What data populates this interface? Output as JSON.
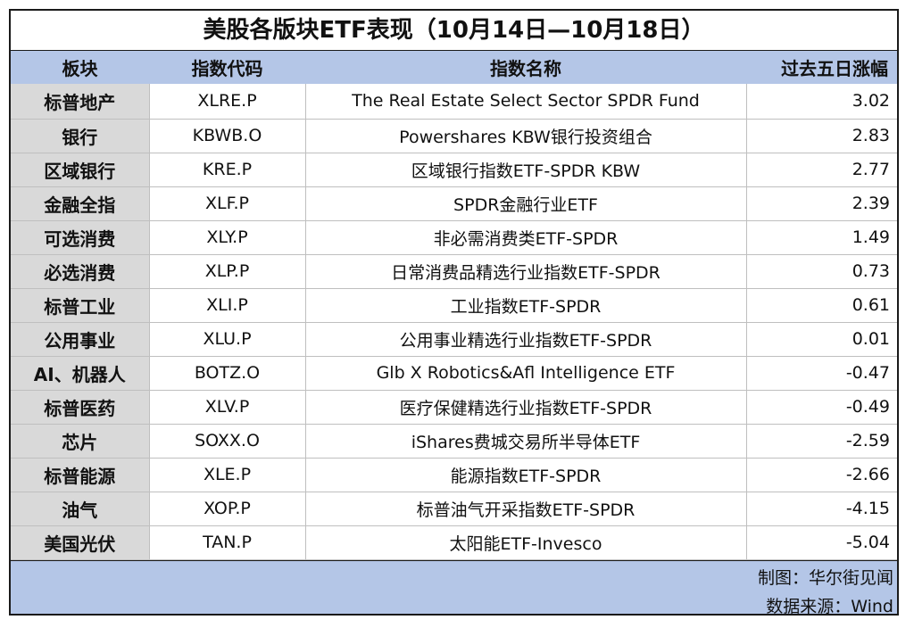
{
  "title": "美股各版块ETF表现（10月14日—10月18日）",
  "headers": {
    "sector": "板块",
    "code": "指数代码",
    "name": "指数名称",
    "change": "过去五日涨幅"
  },
  "rows": [
    {
      "sector": "标普地产",
      "code": "XLRE.P",
      "name": "The Real Estate Select Sector SPDR Fund",
      "change": "3.02"
    },
    {
      "sector": "银行",
      "code": "KBWB.O",
      "name": "Powershares KBW银行投资组合",
      "change": "2.83"
    },
    {
      "sector": "区域银行",
      "code": "KRE.P",
      "name": "区域银行指数ETF-SPDR KBW",
      "change": "2.77"
    },
    {
      "sector": "金融全指",
      "code": "XLF.P",
      "name": "SPDR金融行业ETF",
      "change": "2.39"
    },
    {
      "sector": "可选消费",
      "code": "XLY.P",
      "name": "非必需消费类ETF-SPDR",
      "change": "1.49"
    },
    {
      "sector": "必选消费",
      "code": "XLP.P",
      "name": "日常消费品精选行业指数ETF-SPDR",
      "change": "0.73"
    },
    {
      "sector": "标普工业",
      "code": "XLI.P",
      "name": "工业指数ETF-SPDR",
      "change": "0.61"
    },
    {
      "sector": "公用事业",
      "code": "XLU.P",
      "name": "公用事业精选行业指数ETF-SPDR",
      "change": "0.01"
    },
    {
      "sector": "AI、机器人",
      "code": "BOTZ.O",
      "name": "Glb X Robotics&Afl Intelligence ETF",
      "change": "-0.47"
    },
    {
      "sector": "标普医药",
      "code": "XLV.P",
      "name": "医疗保健精选行业指数ETF-SPDR",
      "change": "-0.49"
    },
    {
      "sector": "芯片",
      "code": "SOXX.O",
      "name": "iShares费城交易所半导体ETF",
      "change": "-2.59"
    },
    {
      "sector": "标普能源",
      "code": "XLE.P",
      "name": "能源指数ETF-SPDR",
      "change": "-2.66"
    },
    {
      "sector": "油气",
      "code": "XOP.P",
      "name": "标普油气开采指数ETF-SPDR",
      "change": "-4.15"
    },
    {
      "sector": "美国光伏",
      "code": "TAN.P",
      "name": "太阳能ETF-Invesco",
      "change": "-5.04"
    }
  ],
  "footer": {
    "maker": "制图：华尔街见闻",
    "source": "数据来源：Wind"
  },
  "colors": {
    "header_bg": "#b4c6e7",
    "sector_bg": "#d9d9d9",
    "footer_bg": "#b4c6e7"
  }
}
